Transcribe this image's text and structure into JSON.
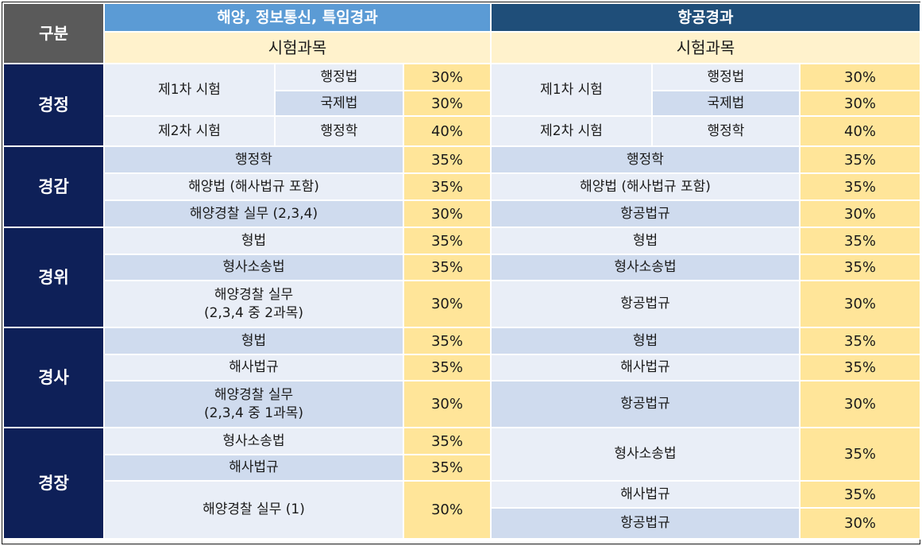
{
  "header": {
    "gubun": "구분",
    "sea_title": "해양, 정보통신, 특임경과",
    "air_title": "항공경과",
    "sea_sub": "시험과목",
    "air_sub": "시험과목"
  },
  "gyeongjeong": {
    "rank": "경정",
    "sea": {
      "first_exam": "제1차 시험",
      "second_exam": "제2차 시험",
      "s1": "행정법",
      "p1": "30%",
      "s2": "국제법",
      "p2": "30%",
      "s3": "행정학",
      "p3": "40%"
    },
    "air": {
      "first_exam": "제1차 시험",
      "second_exam": "제2차 시험",
      "s1": "행정법",
      "p1": "30%",
      "s2": "국제법",
      "p2": "30%",
      "s3": "행정학",
      "p3": "40%"
    }
  },
  "gyeonggam": {
    "rank": "경감",
    "sea": {
      "s1": "행정학",
      "p1": "35%",
      "s2": "해양법 (해사법규 포함)",
      "p2": "35%",
      "s3": "해양경찰 실무 (2,3,4)",
      "p3": "30%"
    },
    "air": {
      "s1": "행정학",
      "p1": "35%",
      "s2": "해양법 (해사법규 포함)",
      "p2": "35%",
      "s3": "항공법규",
      "p3": "30%"
    }
  },
  "gyeongwi": {
    "rank": "경위",
    "sea": {
      "s1": "형법",
      "p1": "35%",
      "s2": "형사소송법",
      "p2": "35%",
      "s3_line1": "해양경찰 실무",
      "s3_line2": "(2,3,4 중 2과목)",
      "p3": "30%"
    },
    "air": {
      "s1": "형법",
      "p1": "35%",
      "s2": "형사소송법",
      "p2": "35%",
      "s3": "항공법규",
      "p3": "30%"
    }
  },
  "gyeongsa": {
    "rank": "경사",
    "sea": {
      "s1": "형법",
      "p1": "35%",
      "s2": "해사법규",
      "p2": "35%",
      "s3_line1": "해양경찰 실무",
      "s3_line2": "(2,3,4 중 1과목)",
      "p3": "30%"
    },
    "air": {
      "s1": "형법",
      "p1": "35%",
      "s2": "해사법규",
      "p2": "35%",
      "s3": "항공법규",
      "p3": "30%"
    }
  },
  "gyeongjang": {
    "rank": "경장",
    "sea": {
      "s1": "형사소송법",
      "p1": "35%",
      "s2": "해사법규",
      "p2": "35%",
      "s3": "해양경찰 실무 (1)",
      "p3": "30%"
    },
    "air": {
      "s1": "형사소송법",
      "p1": "35%",
      "s2": "해사법규",
      "p2": "35%",
      "s3": "항공법규",
      "p3": "30%"
    }
  }
}
